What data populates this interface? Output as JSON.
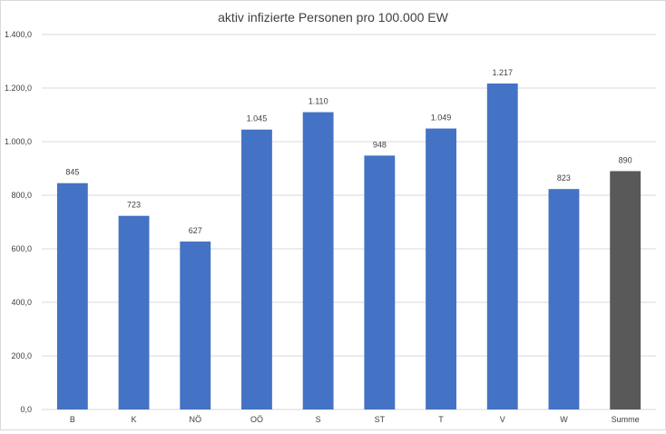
{
  "chart_data": {
    "type": "bar",
    "title": "aktiv infizierte Personen pro 100.000 EW",
    "xlabel": "",
    "ylabel": "",
    "categories": [
      "B",
      "K",
      "NÖ",
      "OÖ",
      "S",
      "ST",
      "T",
      "V",
      "W",
      "Summe"
    ],
    "values": [
      845,
      723,
      627,
      1045,
      1110,
      948,
      1049,
      1217,
      823,
      890
    ],
    "data_labels": [
      "845",
      "723",
      "627",
      "1.045",
      "1.110",
      "948",
      "1.049",
      "1.217",
      "823",
      "890"
    ],
    "bar_colors": [
      "#4472c4",
      "#4472c4",
      "#4472c4",
      "#4472c4",
      "#4472c4",
      "#4472c4",
      "#4472c4",
      "#4472c4",
      "#4472c4",
      "#595959"
    ],
    "ylim": [
      0,
      1400
    ],
    "yticks": [
      0,
      200,
      400,
      600,
      800,
      1000,
      1200,
      1400
    ],
    "ytick_labels": [
      "0,0",
      "200,0",
      "400,0",
      "600,0",
      "800,0",
      "1.000,0",
      "1.200,0",
      "1.400,0"
    ],
    "grid": true,
    "legend": "none",
    "colors": {
      "text": "#404040",
      "grid": "#d9d9d9"
    }
  }
}
